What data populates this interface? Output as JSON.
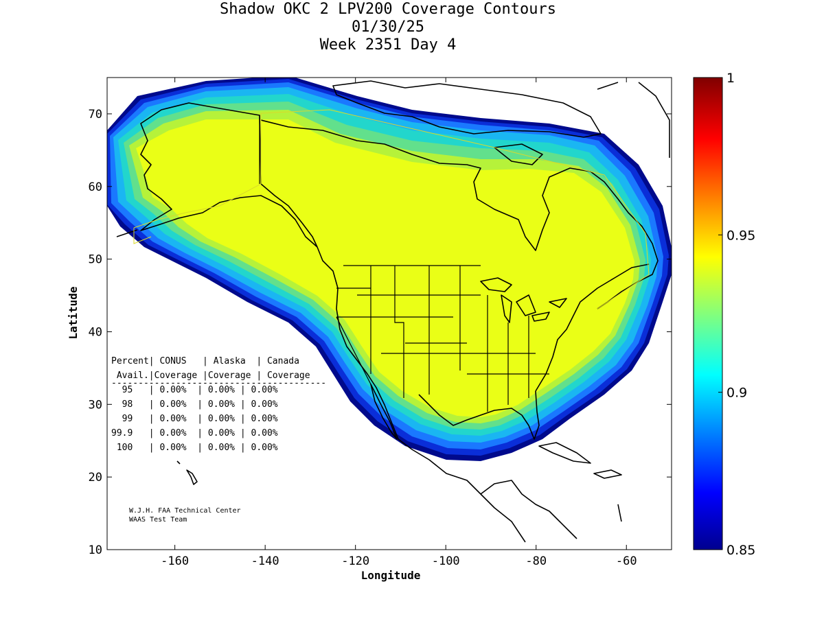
{
  "title": {
    "line1": "Shadow OKC 2 LPV200 Coverage Contours",
    "line2": "01/30/25",
    "line3": "Week 2351 Day 4"
  },
  "axes": {
    "xlabel": "Longitude",
    "ylabel": "Latitude",
    "xlim": [
      -175,
      -50
    ],
    "ylim": [
      10,
      75
    ],
    "x_ticks": [
      "-160",
      "-140",
      "-120",
      "-100",
      "-80",
      "-60"
    ],
    "y_ticks": [
      "10",
      "20",
      "30",
      "40",
      "50",
      "60",
      "70"
    ]
  },
  "colorbar": {
    "min": 0.85,
    "max": 1,
    "ticks": [
      "0.85",
      "0.9",
      "0.95",
      "1"
    ]
  },
  "coverage_table": {
    "header1": "Percent| CONUS   | Alaska  | Canada",
    "header2": " Avail.|Coverage |Coverage | Coverage",
    "separator": "----------------------------------------",
    "rows": [
      "  95   | 0.00%  | 0.00% | 0.00%",
      "  98   | 0.00%  | 0.00% | 0.00%",
      "  99   | 0.00%  | 0.00% | 0.00%",
      "99.9   | 0.00%  | 0.00% | 0.00%",
      " 100   | 0.00%  | 0.00% | 0.00%"
    ]
  },
  "credit": {
    "line1": "W.J.H. FAA Technical Center",
    "line2": "WAAS Test Team"
  },
  "colors": {
    "yellow": "#eaff16",
    "band1": "#b6f23a",
    "band2": "#62e08c",
    "band3": "#22d6cc",
    "band4": "#1ab6f2",
    "band5": "#1a78ff",
    "band6": "#0a2ed8",
    "band7": "#000a8c",
    "outline": "#000000"
  }
}
